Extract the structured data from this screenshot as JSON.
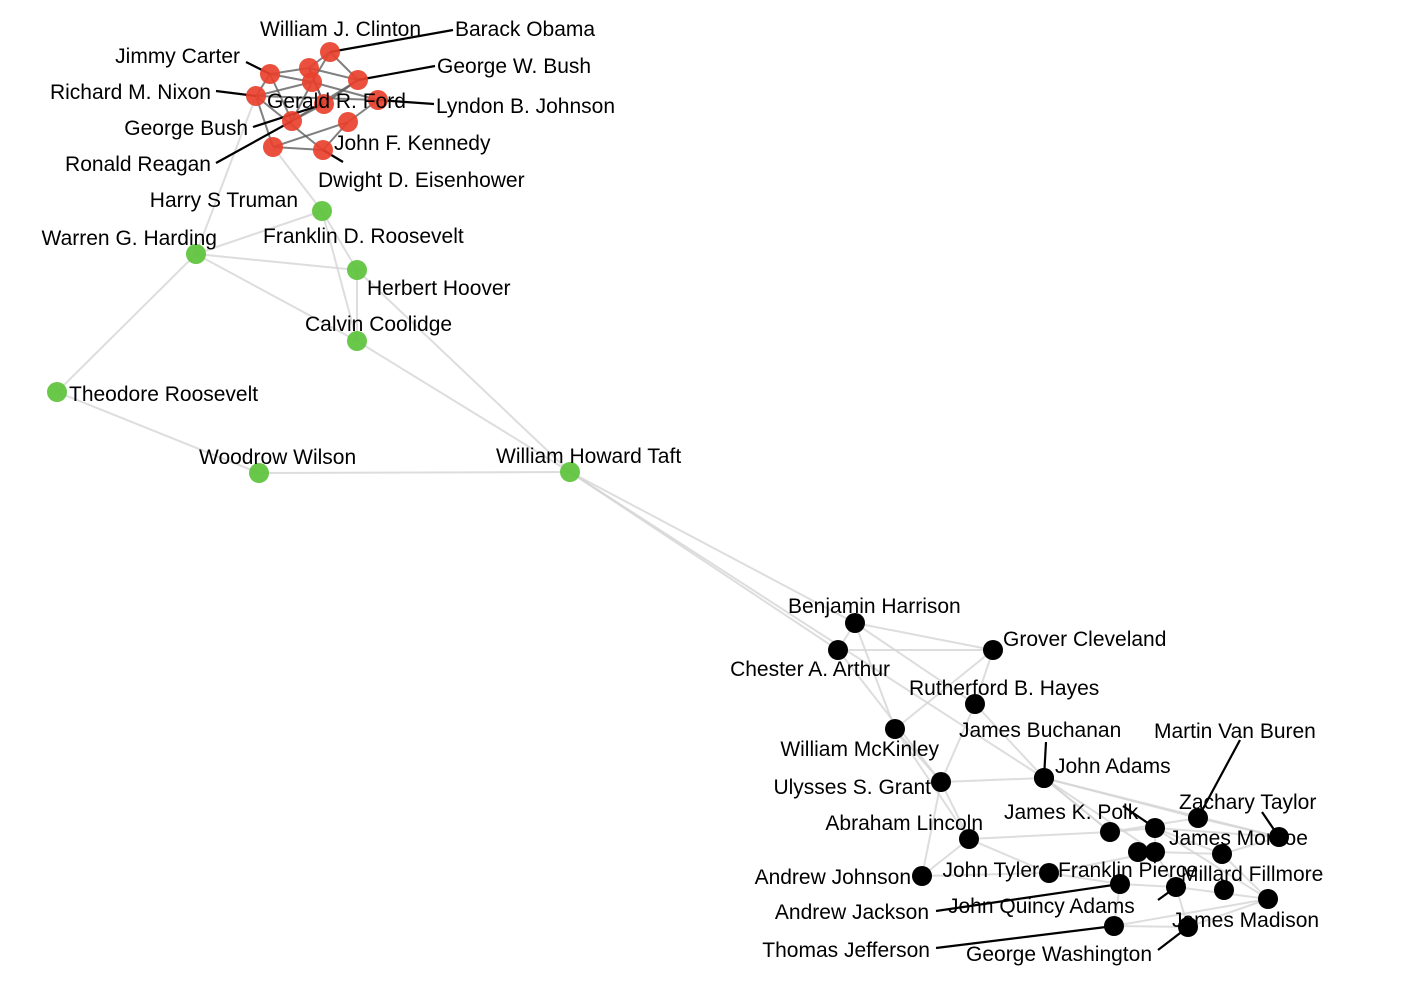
{
  "groups": {
    "modern": "#e8412c",
    "early20th": "#5cc23a",
    "founders19th": "#000000"
  },
  "nodes": [
    {
      "id": "barack-obama",
      "label": "Barack Obama",
      "group": "modern"
    },
    {
      "id": "william-j-clinton",
      "label": "William J. Clinton",
      "group": "modern"
    },
    {
      "id": "george-w-bush",
      "label": "George W. Bush",
      "group": "modern"
    },
    {
      "id": "jimmy-carter",
      "label": "Jimmy Carter",
      "group": "modern"
    },
    {
      "id": "richard-m-nixon",
      "label": "Richard M. Nixon",
      "group": "modern"
    },
    {
      "id": "gerald-r-ford",
      "label": "Gerald R. Ford",
      "group": "modern"
    },
    {
      "id": "lyndon-b-johnson",
      "label": "Lyndon B. Johnson",
      "group": "modern"
    },
    {
      "id": "george-bush",
      "label": "George Bush",
      "group": "modern"
    },
    {
      "id": "john-f-kennedy",
      "label": "John F. Kennedy",
      "group": "modern"
    },
    {
      "id": "ronald-reagan",
      "label": "Ronald Reagan",
      "group": "modern"
    },
    {
      "id": "dwight-d-eisenhower",
      "label": "Dwight D. Eisenhower",
      "group": "modern"
    },
    {
      "id": "harry-s-truman",
      "label": "Harry S Truman",
      "group": "modern"
    },
    {
      "id": "franklin-d-roosevelt",
      "label": "Franklin D. Roosevelt",
      "group": "early20th"
    },
    {
      "id": "warren-g-harding",
      "label": "Warren G. Harding",
      "group": "early20th"
    },
    {
      "id": "herbert-hoover",
      "label": "Herbert Hoover",
      "group": "early20th"
    },
    {
      "id": "calvin-coolidge",
      "label": "Calvin Coolidge",
      "group": "early20th"
    },
    {
      "id": "theodore-roosevelt",
      "label": "Theodore Roosevelt",
      "group": "early20th"
    },
    {
      "id": "woodrow-wilson",
      "label": "Woodrow Wilson",
      "group": "early20th"
    },
    {
      "id": "william-howard-taft",
      "label": "William Howard Taft",
      "group": "early20th"
    },
    {
      "id": "benjamin-harrison",
      "label": "Benjamin Harrison",
      "group": "founders19th"
    },
    {
      "id": "grover-cleveland",
      "label": "Grover Cleveland",
      "group": "founders19th"
    },
    {
      "id": "chester-a-arthur",
      "label": "Chester A. Arthur",
      "group": "founders19th"
    },
    {
      "id": "rutherford-b-hayes",
      "label": "Rutherford B. Hayes",
      "group": "founders19th"
    },
    {
      "id": "william-mckinley",
      "label": "William McKinley",
      "group": "founders19th"
    },
    {
      "id": "james-buchanan",
      "label": "James Buchanan",
      "group": "founders19th"
    },
    {
      "id": "martin-van-buren",
      "label": "Martin Van Buren",
      "group": "founders19th"
    },
    {
      "id": "john-adams",
      "label": "John Adams",
      "group": "founders19th"
    },
    {
      "id": "ulysses-s-grant",
      "label": "Ulysses S. Grant",
      "group": "founders19th"
    },
    {
      "id": "zachary-taylor",
      "label": "Zachary Taylor",
      "group": "founders19th"
    },
    {
      "id": "james-k-polk",
      "label": "James K. Polk",
      "group": "founders19th"
    },
    {
      "id": "abraham-lincoln",
      "label": "Abraham Lincoln",
      "group": "founders19th"
    },
    {
      "id": "james-monroe",
      "label": "James Monroe",
      "group": "founders19th"
    },
    {
      "id": "john-tyler",
      "label": "John Tyler",
      "group": "founders19th"
    },
    {
      "id": "franklin-pierce",
      "label": "Franklin Pierce",
      "group": "founders19th"
    },
    {
      "id": "millard-fillmore",
      "label": "Millard Fillmore",
      "group": "founders19th"
    },
    {
      "id": "andrew-johnson",
      "label": "Andrew Johnson",
      "group": "founders19th"
    },
    {
      "id": "john-quincy-adams",
      "label": "John Quincy Adams",
      "group": "founders19th"
    },
    {
      "id": "andrew-jackson",
      "label": "Andrew Jackson",
      "group": "founders19th"
    },
    {
      "id": "james-madison",
      "label": "James Madison",
      "group": "founders19th"
    },
    {
      "id": "thomas-jefferson",
      "label": "Thomas Jefferson",
      "group": "founders19th"
    },
    {
      "id": "george-washington",
      "label": "George Washington",
      "group": "founders19th"
    }
  ],
  "edges": [
    [
      "barack-obama",
      "william-j-clinton"
    ],
    [
      "barack-obama",
      "george-w-bush"
    ],
    [
      "barack-obama",
      "gerald-r-ford"
    ],
    [
      "william-j-clinton",
      "george-w-bush"
    ],
    [
      "william-j-clinton",
      "jimmy-carter"
    ],
    [
      "william-j-clinton",
      "george-bush"
    ],
    [
      "george-w-bush",
      "george-bush"
    ],
    [
      "george-w-bush",
      "ronald-reagan"
    ],
    [
      "jimmy-carter",
      "gerald-r-ford"
    ],
    [
      "jimmy-carter",
      "richard-m-nixon"
    ],
    [
      "jimmy-carter",
      "ronald-reagan"
    ],
    [
      "richard-m-nixon",
      "gerald-r-ford"
    ],
    [
      "richard-m-nixon",
      "lyndon-b-johnson"
    ],
    [
      "richard-m-nixon",
      "dwight-d-eisenhower"
    ],
    [
      "gerald-r-ford",
      "ronald-reagan"
    ],
    [
      "gerald-r-ford",
      "lyndon-b-johnson"
    ],
    [
      "lyndon-b-johnson",
      "john-f-kennedy"
    ],
    [
      "john-f-kennedy",
      "dwight-d-eisenhower"
    ],
    [
      "dwight-d-eisenhower",
      "harry-s-truman"
    ],
    [
      "harry-s-truman",
      "franklin-d-roosevelt"
    ],
    [
      "john-f-kennedy",
      "harry-s-truman"
    ],
    [
      "richard-m-nixon",
      "harry-s-truman"
    ],
    [
      "ronald-reagan",
      "george-bush"
    ],
    [
      "george-bush",
      "william-j-clinton"
    ],
    [
      "franklin-d-roosevelt",
      "herbert-hoover"
    ],
    [
      "franklin-d-roosevelt",
      "warren-g-harding"
    ],
    [
      "franklin-d-roosevelt",
      "calvin-coolidge"
    ],
    [
      "herbert-hoover",
      "calvin-coolidge"
    ],
    [
      "herbert-hoover",
      "warren-g-harding"
    ],
    [
      "warren-g-harding",
      "calvin-coolidge"
    ],
    [
      "warren-g-harding",
      "theodore-roosevelt"
    ],
    [
      "warren-g-harding",
      "richard-m-nixon"
    ],
    [
      "theodore-roosevelt",
      "woodrow-wilson"
    ],
    [
      "woodrow-wilson",
      "william-howard-taft"
    ],
    [
      "calvin-coolidge",
      "william-howard-taft"
    ],
    [
      "herbert-hoover",
      "william-howard-taft"
    ],
    [
      "william-howard-taft",
      "benjamin-harrison"
    ],
    [
      "william-howard-taft",
      "chester-a-arthur"
    ],
    [
      "william-howard-taft",
      "john-adams"
    ],
    [
      "benjamin-harrison",
      "grover-cleveland"
    ],
    [
      "benjamin-harrison",
      "chester-a-arthur"
    ],
    [
      "benjamin-harrison",
      "rutherford-b-hayes"
    ],
    [
      "benjamin-harrison",
      "william-mckinley"
    ],
    [
      "chester-a-arthur",
      "grover-cleveland"
    ],
    [
      "chester-a-arthur",
      "ulysses-s-grant"
    ],
    [
      "grover-cleveland",
      "rutherford-b-hayes"
    ],
    [
      "grover-cleveland",
      "william-mckinley"
    ],
    [
      "rutherford-b-hayes",
      "james-buchanan"
    ],
    [
      "rutherford-b-hayes",
      "ulysses-s-grant"
    ],
    [
      "william-mckinley",
      "ulysses-s-grant"
    ],
    [
      "william-mckinley",
      "abraham-lincoln"
    ],
    [
      "james-buchanan",
      "john-adams"
    ],
    [
      "james-buchanan",
      "james-k-polk"
    ],
    [
      "james-buchanan",
      "franklin-pierce"
    ],
    [
      "john-adams",
      "james-k-polk"
    ],
    [
      "john-adams",
      "zachary-taylor"
    ],
    [
      "john-adams",
      "ulysses-s-grant"
    ],
    [
      "ulysses-s-grant",
      "abraham-lincoln"
    ],
    [
      "ulysses-s-grant",
      "andrew-johnson"
    ],
    [
      "abraham-lincoln",
      "andrew-johnson"
    ],
    [
      "abraham-lincoln",
      "john-tyler"
    ],
    [
      "abraham-lincoln",
      "james-k-polk"
    ],
    [
      "james-k-polk",
      "james-monroe"
    ],
    [
      "james-k-polk",
      "martin-van-buren"
    ],
    [
      "martin-van-buren",
      "zachary-taylor"
    ],
    [
      "zachary-taylor",
      "james-monroe"
    ],
    [
      "james-monroe",
      "millard-fillmore"
    ],
    [
      "james-monroe",
      "franklin-pierce"
    ],
    [
      "franklin-pierce",
      "millard-fillmore"
    ],
    [
      "franklin-pierce",
      "john-quincy-adams"
    ],
    [
      "millard-fillmore",
      "james-madison"
    ],
    [
      "john-quincy-adams",
      "andrew-jackson"
    ],
    [
      "john-quincy-adams",
      "james-madison"
    ],
    [
      "andrew-jackson",
      "thomas-jefferson"
    ],
    [
      "thomas-jefferson",
      "james-madison"
    ],
    [
      "thomas-jefferson",
      "george-washington"
    ],
    [
      "james-madison",
      "george-washington"
    ],
    [
      "john-tyler",
      "franklin-pierce"
    ],
    [
      "john-tyler",
      "andrew-jackson"
    ],
    [
      "andrew-johnson",
      "john-tyler"
    ],
    [
      "john-adams",
      "martin-van-buren"
    ],
    [
      "james-monroe",
      "james-madison"
    ],
    [
      "george-washington",
      "john-quincy-adams"
    ],
    [
      "zachary-taylor",
      "millard-fillmore"
    ]
  ]
}
